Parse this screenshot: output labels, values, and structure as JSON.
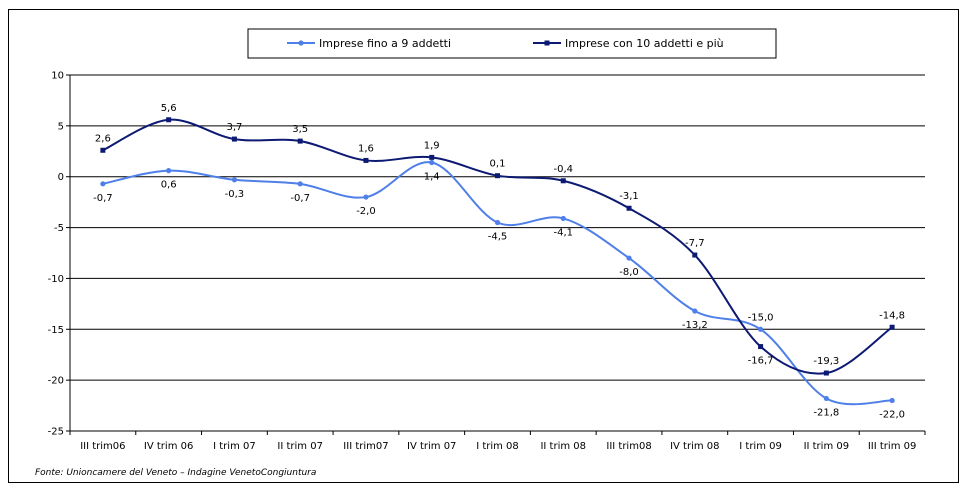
{
  "chart_data": {
    "type": "line",
    "categories": [
      "III trim06",
      "IV trim 06",
      "I trim 07",
      "II trim 07",
      "III trim07",
      "IV trim 07",
      "I trim 08",
      "II trim 08",
      "III trim08",
      "IV trim 08",
      "I trim 09",
      "II trim 09",
      "III trim 09"
    ],
    "series": [
      {
        "name": "Imprese fino a 9 addetti",
        "color": "#4f7fe8",
        "marker": "circle",
        "values": [
          -0.7,
          0.6,
          -0.3,
          -0.7,
          -2.0,
          1.4,
          -4.5,
          -4.1,
          -8.0,
          -13.2,
          -15.0,
          -21.8,
          -22.0
        ],
        "labels": [
          "-0,7",
          "0,6",
          "-0,3",
          "-0,7",
          "-2,0",
          "1,4",
          "-4,5",
          "-4,1",
          "-8,0",
          "-13,2",
          "-15,0",
          "-21,8",
          "-22,0"
        ]
      },
      {
        "name": "Imprese con 10 addetti e più",
        "color": "#0d1a73",
        "marker": "square",
        "values": [
          2.6,
          5.6,
          3.7,
          3.5,
          1.6,
          1.9,
          0.1,
          -0.4,
          -3.1,
          -7.7,
          -16.7,
          -19.3,
          -14.8
        ],
        "labels": [
          "2,6",
          "5,6",
          "3,7",
          "3,5",
          "1,6",
          "1,9",
          "0,1",
          "-0,4",
          "-3,1",
          "-7,7",
          "-16,7",
          "-19,3",
          "-14,8"
        ]
      }
    ],
    "yticks": [
      10,
      5,
      0,
      -5,
      -10,
      -15,
      -20,
      -25
    ],
    "ylim": [
      -25,
      10
    ],
    "grid": true,
    "legend_position": "top-center"
  },
  "source_note": "Fonte: Unioncamere del Veneto – Indagine VenetoCongiuntura"
}
